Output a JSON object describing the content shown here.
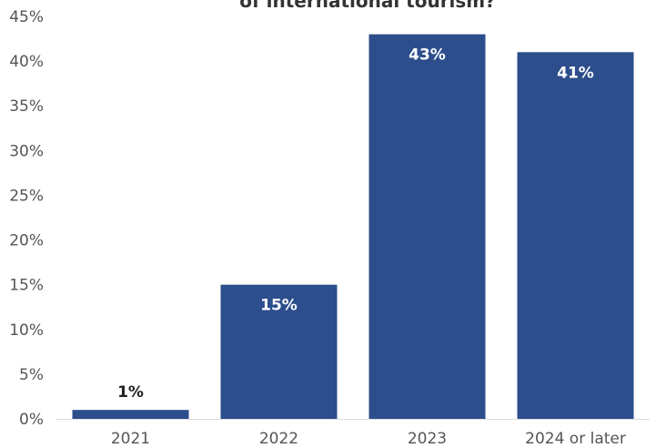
{
  "chart_data": {
    "type": "bar",
    "title_visible_fragment": "of international tourism?",
    "categories": [
      "2021",
      "2022",
      "2023",
      "2024 or later"
    ],
    "values": [
      1,
      15,
      43,
      41
    ],
    "value_labels": [
      "1%",
      "15%",
      "43%",
      "41%"
    ],
    "yticks": [
      "0%",
      "5%",
      "10%",
      "15%",
      "20%",
      "25%",
      "30%",
      "35%",
      "40%",
      "45%"
    ],
    "ylim": [
      0,
      45
    ],
    "ytick_step": 5,
    "grid": false,
    "legend": "none",
    "colors": {
      "bar": "#2c4e8c",
      "label_inside": "#ffffff",
      "label_outside": "#222222",
      "axis": "#dddddd"
    }
  }
}
